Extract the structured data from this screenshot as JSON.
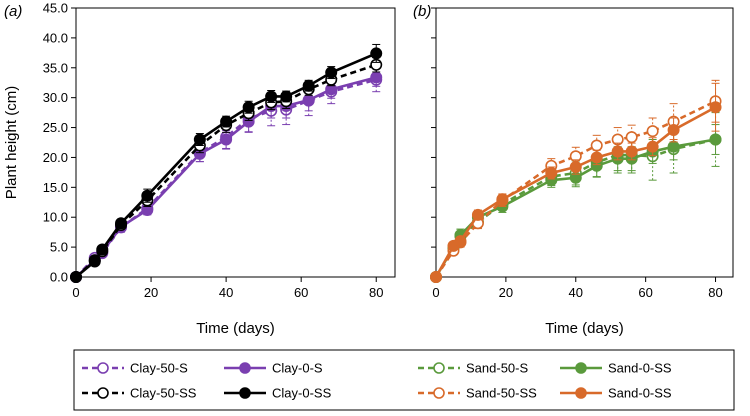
{
  "chart_data": [
    {
      "type": "line",
      "panel_label": "(a)",
      "xlabel": "Time (days)",
      "ylabel": "Plant height (cm)",
      "xlim": [
        0,
        85
      ],
      "ylim": [
        0,
        45
      ],
      "xticks": [
        0,
        20,
        40,
        60,
        80
      ],
      "yticks": [
        0,
        5,
        10,
        15,
        20,
        25,
        30,
        35,
        40,
        45
      ],
      "ytick_labels": [
        "0.0",
        "5.0",
        "10.0",
        "15.0",
        "20.0",
        "25.0",
        "30.0",
        "35.0",
        "40.0",
        "45.0"
      ],
      "x": [
        0,
        5,
        7,
        12,
        19,
        33,
        40,
        46,
        52,
        56,
        62,
        68,
        80
      ],
      "series": [
        {
          "name": "Clay-50-S",
          "color": "#7a3fb0",
          "dashed": true,
          "filled": false,
          "values": [
            0,
            3.2,
            4.0,
            8.3,
            11.5,
            20.8,
            23.4,
            26.5,
            27.8,
            28.0,
            29.5,
            31.0,
            33.0
          ],
          "err": [
            0,
            0.5,
            0.6,
            0.8,
            1.0,
            1.5,
            2.0,
            2.2,
            2.5,
            2.5,
            2.5,
            2.0,
            2.0
          ]
        },
        {
          "name": "Clay-0-S",
          "color": "#7a3fb0",
          "dashed": false,
          "filled": true,
          "values": [
            0,
            2.8,
            4.2,
            8.4,
            11.2,
            20.6,
            23.0,
            26.0,
            28.6,
            28.6,
            29.6,
            31.4,
            33.4
          ],
          "err": [
            0,
            0.4,
            0.5,
            0.7,
            0.8,
            1.3,
            1.5,
            1.8,
            2.0,
            2.0,
            1.8,
            1.5,
            1.5
          ]
        },
        {
          "name": "Clay-50-SS",
          "color": "#000000",
          "dashed": true,
          "filled": false,
          "values": [
            0,
            2.8,
            4.3,
            8.7,
            12.8,
            22.0,
            25.4,
            27.4,
            29.2,
            29.4,
            31.4,
            33.0,
            35.5
          ],
          "err": [
            0,
            0.4,
            0.6,
            0.7,
            1.0,
            1.2,
            1.2,
            1.2,
            1.2,
            1.2,
            1.0,
            1.0,
            1.2
          ]
        },
        {
          "name": "Clay-0-SS",
          "color": "#000000",
          "dashed": false,
          "filled": true,
          "values": [
            0,
            2.6,
            4.6,
            9.0,
            13.6,
            23.0,
            26.0,
            28.4,
            30.2,
            30.2,
            32.0,
            34.2,
            37.4
          ],
          "err": [
            0,
            0.4,
            0.5,
            0.7,
            1.1,
            1.0,
            0.9,
            1.0,
            1.0,
            0.9,
            0.9,
            1.0,
            1.5
          ]
        }
      ]
    },
    {
      "type": "line",
      "panel_label": "(b)",
      "xlabel": "Time (days)",
      "ylabel": "",
      "xlim": [
        0,
        85
      ],
      "ylim": [
        0,
        45
      ],
      "xticks": [
        0,
        20,
        40,
        60,
        80
      ],
      "yticks": [
        0,
        5,
        10,
        15,
        20,
        25,
        30,
        35,
        40,
        45
      ],
      "ytick_labels": [],
      "x": [
        0,
        5,
        7,
        12,
        19,
        33,
        40,
        46,
        52,
        56,
        62,
        68,
        80
      ],
      "series": [
        {
          "name": "Sand-50-S",
          "color": "#5a9a3c",
          "dashed": true,
          "filled": false,
          "values": [
            0,
            4.8,
            6.8,
            9.2,
            12.2,
            16.8,
            17.4,
            19.2,
            20.4,
            20.4,
            20.2,
            21.4,
            23.0
          ],
          "err": [
            0,
            1.0,
            1.2,
            1.0,
            1.0,
            1.5,
            2.0,
            2.5,
            3.0,
            3.0,
            4.0,
            4.0,
            4.5
          ]
        },
        {
          "name": "Sand-0-SS",
          "color": "#5a9a3c",
          "dashed": false,
          "filled": true,
          "values": [
            0,
            5.0,
            7.0,
            10.0,
            11.8,
            16.2,
            16.6,
            18.6,
            19.8,
            19.8,
            21.0,
            21.8,
            23.0
          ],
          "err": [
            0,
            0.8,
            1.0,
            1.0,
            1.0,
            1.2,
            1.5,
            1.8,
            2.0,
            2.0,
            2.0,
            2.2,
            2.5
          ]
        },
        {
          "name": "Sand-50-SS",
          "color": "#d86a2a",
          "dashed": true,
          "filled": false,
          "values": [
            0,
            4.4,
            5.8,
            9.0,
            12.8,
            18.6,
            20.2,
            22.0,
            23.0,
            23.4,
            24.4,
            26.0,
            29.4
          ],
          "err": [
            0,
            0.7,
            0.8,
            0.9,
            1.0,
            1.2,
            1.5,
            1.7,
            2.0,
            2.0,
            2.2,
            3.0,
            3.5
          ]
        },
        {
          "name": "Sand-0-SS",
          "color": "#d86a2a",
          "dashed": false,
          "filled": true,
          "values": [
            0,
            5.2,
            6.0,
            10.4,
            13.0,
            17.4,
            18.4,
            20.0,
            21.0,
            21.0,
            21.8,
            24.6,
            28.4
          ],
          "err": [
            0,
            0.6,
            0.7,
            0.8,
            0.9,
            1.0,
            1.2,
            1.2,
            1.4,
            1.4,
            1.5,
            2.0,
            4.0
          ]
        }
      ]
    }
  ],
  "legend": [
    {
      "label": "Clay-50-S",
      "color": "#7a3fb0",
      "dashed": true,
      "filled": false
    },
    {
      "label": "Clay-0-S",
      "color": "#7a3fb0",
      "dashed": false,
      "filled": true
    },
    {
      "label": "Sand-50-S",
      "color": "#5a9a3c",
      "dashed": true,
      "filled": false
    },
    {
      "label": "Sand-0-SS",
      "color": "#5a9a3c",
      "dashed": false,
      "filled": true
    },
    {
      "label": "Clay-50-SS",
      "color": "#000000",
      "dashed": true,
      "filled": false
    },
    {
      "label": "Clay-0-SS",
      "color": "#000000",
      "dashed": false,
      "filled": true
    },
    {
      "label": "Sand-50-SS",
      "color": "#d86a2a",
      "dashed": true,
      "filled": false
    },
    {
      "label": "Sand-0-SS",
      "color": "#d86a2a",
      "dashed": false,
      "filled": true
    }
  ]
}
